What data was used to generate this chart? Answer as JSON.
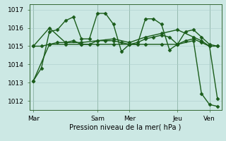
{
  "bg_color": "#cce8e4",
  "grid_color": "#aacccc",
  "line_color": "#1a5c1a",
  "xtick_labels": [
    "Mar",
    "Sam",
    "Mer",
    "Jeu",
    "Ven"
  ],
  "xtick_positions": [
    0,
    16,
    24,
    36,
    44
  ],
  "ylabel": "Pression niveau de la mer( hPa )",
  "ylim": [
    1011.5,
    1017.3
  ],
  "yticks": [
    1012,
    1013,
    1014,
    1015,
    1016,
    1017
  ],
  "series": [
    {
      "x": [
        0,
        2,
        4,
        6,
        8,
        10,
        12,
        14,
        16,
        18,
        20,
        22,
        24,
        26,
        28,
        30,
        32,
        34,
        36,
        38,
        40,
        42,
        44,
        46
      ],
      "y": [
        1013.1,
        1013.8,
        1015.8,
        1015.9,
        1016.4,
        1016.6,
        1015.4,
        1015.4,
        1016.8,
        1016.8,
        1016.2,
        1014.7,
        1015.1,
        1015.1,
        1016.5,
        1016.5,
        1016.2,
        1014.8,
        1015.1,
        1015.8,
        1015.9,
        1015.5,
        1015.1,
        1015.0
      ]
    },
    {
      "x": [
        0,
        2,
        4,
        6,
        8,
        10,
        12,
        14,
        16,
        18,
        20,
        22,
        24,
        26,
        28,
        30,
        32,
        34,
        36,
        38,
        40,
        42,
        44,
        46
      ],
      "y": [
        1015.0,
        1015.0,
        1015.1,
        1015.2,
        1015.2,
        1015.3,
        1015.1,
        1015.1,
        1015.3,
        1015.3,
        1015.3,
        1015.2,
        1015.1,
        1015.2,
        1015.4,
        1015.5,
        1015.6,
        1015.5,
        1015.1,
        1015.3,
        1015.4,
        1015.2,
        1015.0,
        1015.0
      ]
    },
    {
      "x": [
        0,
        4,
        8,
        12,
        16,
        20,
        24,
        28,
        32,
        36,
        40,
        42,
        44,
        46
      ],
      "y": [
        1013.1,
        1015.1,
        1015.1,
        1015.1,
        1015.1,
        1015.1,
        1015.1,
        1015.1,
        1015.1,
        1015.1,
        1015.3,
        1012.4,
        1011.8,
        1011.7
      ]
    },
    {
      "x": [
        0,
        4,
        8,
        12,
        16,
        20,
        24,
        28,
        32,
        36,
        40,
        42,
        44,
        46
      ],
      "y": [
        1015.0,
        1016.0,
        1015.2,
        1015.2,
        1015.3,
        1015.4,
        1015.2,
        1015.5,
        1015.7,
        1015.9,
        1015.5,
        1015.3,
        1015.0,
        1012.1
      ]
    }
  ],
  "marker": "D",
  "markersize": 2.5,
  "linewidth": 1.0,
  "tick_fontsize": 6.5,
  "xlabel_fontsize": 7
}
